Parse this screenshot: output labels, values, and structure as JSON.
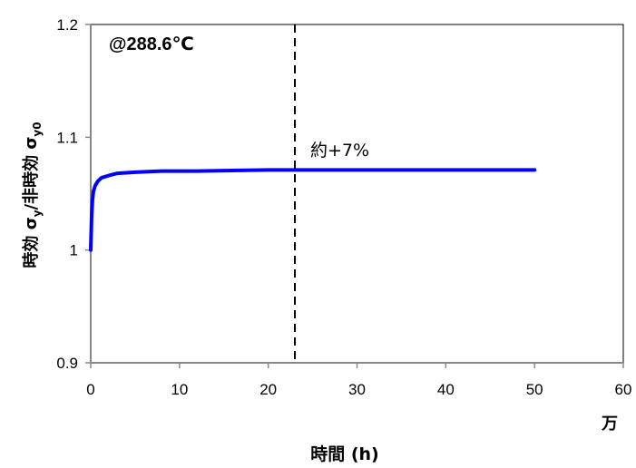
{
  "chart_data": {
    "type": "line",
    "annotation": "@288.6℃",
    "note": "約+7%",
    "xlabel": "時間 (h)",
    "x_unit": "万",
    "ylabel": {
      "part1": "時効 σ",
      "sub1": "y",
      "part2": "/非時効 σ",
      "sub2": "y0"
    },
    "xlim": [
      0,
      60
    ],
    "ylim": [
      0.9,
      1.2
    ],
    "x_ticks": [
      0,
      10,
      20,
      30,
      40,
      50,
      60
    ],
    "x_tick_labels": [
      "0",
      "10",
      "20",
      "30",
      "40",
      "50",
      "60"
    ],
    "y_ticks": [
      0.9,
      1.0,
      1.1,
      1.2
    ],
    "y_tick_labels": [
      "0.9",
      "1",
      "1.1",
      "1.2"
    ],
    "reference_line_x": 23,
    "grid": false,
    "series": [
      {
        "color": "#0000ff",
        "x": [
          0,
          0.1,
          0.2,
          0.3,
          0.5,
          0.8,
          1.2,
          2,
          3,
          5,
          8,
          12,
          20,
          30,
          40,
          50
        ],
        "y": [
          1.0,
          1.03,
          1.045,
          1.052,
          1.057,
          1.061,
          1.064,
          1.066,
          1.068,
          1.069,
          1.07,
          1.07,
          1.071,
          1.071,
          1.071,
          1.071
        ]
      }
    ]
  }
}
